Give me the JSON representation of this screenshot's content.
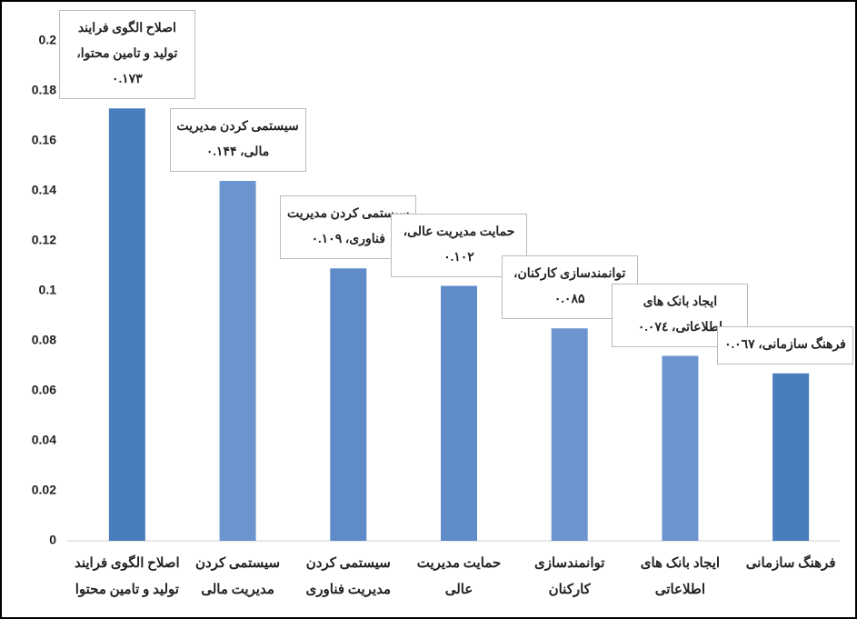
{
  "chart_data": {
    "type": "bar",
    "categories": [
      "اصلاح الگوی فرایند تولید و تامین محتوا",
      "سیستمی کردن مدیریت مالی",
      "سیستمی کردن مدیریت فناوری",
      "حمایت مدیریت عالی",
      "توانمندسازی کارکنان",
      "ایجاد بانک های اطلاعاتی",
      "فرهنگ سازمانی"
    ],
    "values": [
      0.173,
      0.144,
      0.109,
      0.102,
      0.085,
      0.074,
      0.067
    ],
    "value_labels": [
      "۰.۱۷۳",
      "۰.۱۴۴",
      "۰.۱۰۹",
      "۰.۱۰۲",
      "۰.۰۸۵",
      "۰.۰۷٤",
      "۰.۰٦۷"
    ],
    "colors": [
      "#4a7dbc",
      "#6c95cf",
      "#5f8bc8",
      "#5f8bc8",
      "#6c95cf",
      "#6c95cf",
      "#4a7dbc"
    ],
    "ylim": [
      0,
      0.2
    ],
    "yticks": [
      0,
      0.02,
      0.04,
      0.06,
      0.08,
      0.1,
      0.12,
      0.14,
      0.16,
      0.18,
      0.2
    ],
    "grid": false
  }
}
